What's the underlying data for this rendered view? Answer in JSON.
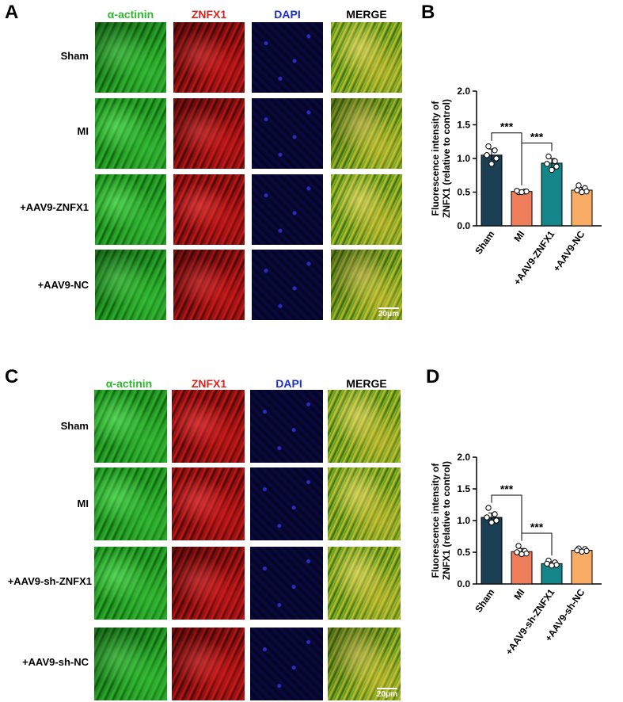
{
  "panels": {
    "A": {
      "letter": "A",
      "columns": [
        "α-actinin",
        "ZNFX1",
        "DAPI",
        "MERGE"
      ],
      "rows": [
        "Sham",
        "MI",
        "+AAV9-ZNFX1",
        "+AAV9-NC"
      ],
      "scale_label": "20μm"
    },
    "B": {
      "letter": "B"
    },
    "C": {
      "letter": "C",
      "columns": [
        "α-actinin",
        "ZNFX1",
        "DAPI",
        "MERGE"
      ],
      "rows": [
        "Sham",
        "MI",
        "+AAV9-sh-ZNFX1",
        "+AAV9-sh-NC"
      ],
      "scale_label": "20μm"
    },
    "D": {
      "letter": "D"
    }
  },
  "colors": {
    "alpha_actinin": "#2db82d",
    "znfx1": "#e0201c",
    "dapi": "#1a2fd6",
    "merge": "#000000",
    "sham_bar": "#1b3f55",
    "mi_bar": "#ef7f5c",
    "treat_bar": "#14868a",
    "nc_bar": "#f8ac66"
  },
  "chart_data": [
    {
      "type": "bar",
      "panel": "B",
      "categories": [
        "Sham",
        "MI",
        "+AAV9-ZNFX1",
        "+AAV9-NC"
      ],
      "values": [
        1.05,
        0.51,
        0.93,
        0.53
      ],
      "errors": [
        0.09,
        0.02,
        0.07,
        0.04
      ],
      "points": [
        [
          1.18,
          1.12,
          1.05,
          1.0,
          0.92
        ],
        [
          0.5,
          0.51,
          0.52,
          0.51,
          0.5
        ],
        [
          1.03,
          0.96,
          0.92,
          0.88,
          0.83
        ],
        [
          0.6,
          0.56,
          0.53,
          0.51,
          0.5
        ]
      ],
      "bar_colors": [
        "#1b3f55",
        "#ef7f5c",
        "#14868a",
        "#f8ac66"
      ],
      "ylabel": "Fluorescence intensity of ZNFX1 (relative to control)",
      "ylabel_lines": [
        "Fluorescence intensity of",
        "ZNFX1 (relative to control)"
      ],
      "ylim": [
        0,
        2.0
      ],
      "yticks": [
        "0.0",
        "0.5",
        "1.0",
        "1.5",
        "2.0"
      ],
      "significance": [
        {
          "from": 0,
          "to": 1,
          "label": "***"
        },
        {
          "from": 1,
          "to": 2,
          "label": "***"
        }
      ]
    },
    {
      "type": "bar",
      "panel": "D",
      "categories": [
        "Sham",
        "MI",
        "+AAV9-sh-ZNFX1",
        "+AAV9-sh-NC"
      ],
      "values": [
        1.05,
        0.51,
        0.32,
        0.53
      ],
      "errors": [
        0.07,
        0.05,
        0.03,
        0.02
      ],
      "points": [
        [
          1.2,
          1.1,
          1.05,
          1.0,
          0.97
        ],
        [
          0.6,
          0.52,
          0.5,
          0.48,
          0.47
        ],
        [
          0.37,
          0.34,
          0.32,
          0.3,
          0.29
        ],
        [
          0.56,
          0.55,
          0.53,
          0.52,
          0.51
        ]
      ],
      "bar_colors": [
        "#1b3f55",
        "#ef7f5c",
        "#14868a",
        "#f8ac66"
      ],
      "ylabel": "Fluorescence intensity of ZNFX1 (relative to control)",
      "ylabel_lines": [
        "Fluorescence intensity of",
        "ZNFX1 (relative to control)"
      ],
      "ylim": [
        0,
        2.0
      ],
      "yticks": [
        "0.0",
        "0.5",
        "1.0",
        "1.5",
        "2.0"
      ],
      "significance": [
        {
          "from": 0,
          "to": 1,
          "label": "***"
        },
        {
          "from": 1,
          "to": 2,
          "label": "***"
        }
      ]
    }
  ]
}
